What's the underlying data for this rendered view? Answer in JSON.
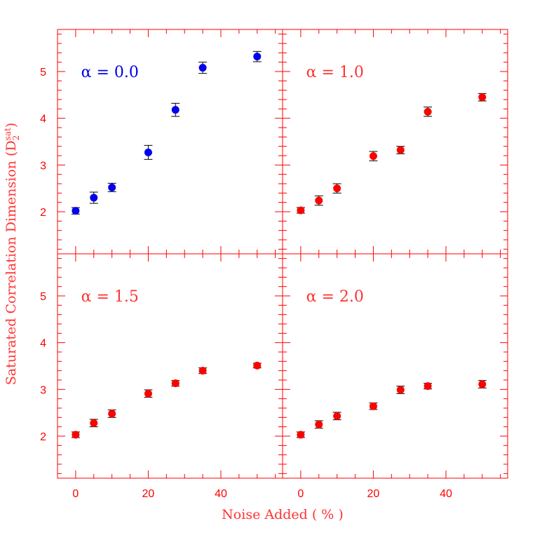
{
  "chart_data": {
    "type": "scatter",
    "layout": "2x2 grid of panels sharing axes",
    "xlabel": "Noise Added ( % )",
    "ylabel": "Saturated Correlation Dimension (D",
    "ylabel_sub": "2",
    "ylabel_sup": "sat",
    "ylabel_close": ")",
    "xlim": [
      -5,
      57
    ],
    "ylim": [
      1.1,
      5.9
    ],
    "xticks": [
      0,
      20,
      40
    ],
    "yticks": [
      2,
      3,
      4,
      5
    ],
    "grid": false,
    "axis_color": "#ff0000",
    "panels": [
      {
        "label": "α  =  0.0",
        "marker_color": "#0000ee",
        "points": [
          {
            "x": 0,
            "y": 2.02,
            "err": 0.07
          },
          {
            "x": 5,
            "y": 2.3,
            "err": 0.12
          },
          {
            "x": 10,
            "y": 2.52,
            "err": 0.09
          },
          {
            "x": 20,
            "y": 3.27,
            "err": 0.15
          },
          {
            "x": 27.5,
            "y": 4.18,
            "err": 0.14
          },
          {
            "x": 35,
            "y": 5.08,
            "err": 0.12
          },
          {
            "x": 50,
            "y": 5.32,
            "err": 0.11
          }
        ]
      },
      {
        "label": "α  =  1.0",
        "marker_color": "#ff0000",
        "points": [
          {
            "x": 0,
            "y": 2.03,
            "err": 0.06
          },
          {
            "x": 5,
            "y": 2.24,
            "err": 0.1
          },
          {
            "x": 10,
            "y": 2.5,
            "err": 0.1
          },
          {
            "x": 20,
            "y": 3.19,
            "err": 0.1
          },
          {
            "x": 27.5,
            "y": 3.32,
            "err": 0.08
          },
          {
            "x": 35,
            "y": 4.14,
            "err": 0.1
          },
          {
            "x": 50,
            "y": 4.45,
            "err": 0.08
          }
        ]
      },
      {
        "label": "α  =  1.5",
        "marker_color": "#ff0000",
        "points": [
          {
            "x": 0,
            "y": 2.03,
            "err": 0.06
          },
          {
            "x": 5,
            "y": 2.28,
            "err": 0.08
          },
          {
            "x": 10,
            "y": 2.48,
            "err": 0.08
          },
          {
            "x": 20,
            "y": 2.91,
            "err": 0.08
          },
          {
            "x": 27.5,
            "y": 3.13,
            "err": 0.06
          },
          {
            "x": 35,
            "y": 3.4,
            "err": 0.06
          },
          {
            "x": 50,
            "y": 3.51,
            "err": 0.05
          }
        ]
      },
      {
        "label": "α  =  2.0",
        "marker_color": "#ff0000",
        "points": [
          {
            "x": 0,
            "y": 2.03,
            "err": 0.06
          },
          {
            "x": 5,
            "y": 2.25,
            "err": 0.08
          },
          {
            "x": 10,
            "y": 2.43,
            "err": 0.08
          },
          {
            "x": 20,
            "y": 2.64,
            "err": 0.07
          },
          {
            "x": 27.5,
            "y": 2.99,
            "err": 0.08
          },
          {
            "x": 35,
            "y": 3.07,
            "err": 0.06
          },
          {
            "x": 50,
            "y": 3.11,
            "err": 0.08
          }
        ]
      }
    ]
  }
}
